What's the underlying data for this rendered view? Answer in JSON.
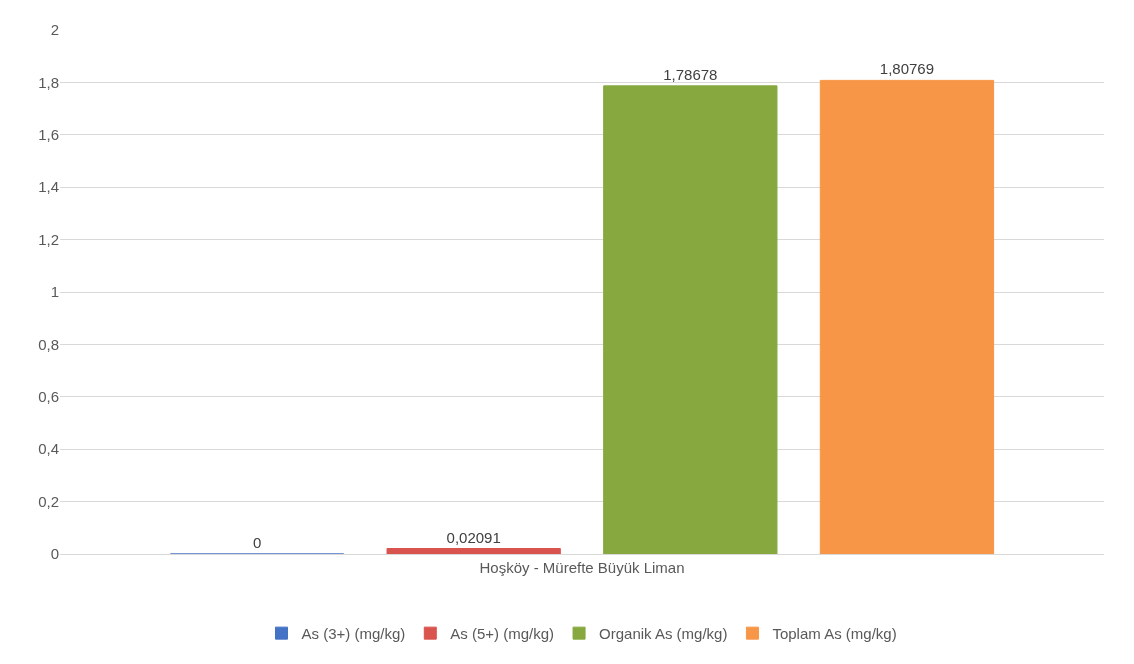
{
  "chart_data": {
    "type": "bar",
    "categories": [
      "Hoşköy - Mürefte Büyük Liman"
    ],
    "series": [
      {
        "name": "As (3+) (mg/kg)",
        "color": "#4472c4",
        "values": [
          0
        ],
        "value_labels": [
          "0"
        ]
      },
      {
        "name": "As (5+) (mg/kg)",
        "color": "#d9534f",
        "values": [
          0.02091
        ],
        "value_labels": [
          "0,02091"
        ]
      },
      {
        "name": "Organik As (mg/kg)",
        "color": "#86a83f",
        "values": [
          1.78678
        ],
        "value_labels": [
          "1,78678"
        ]
      },
      {
        "name": "Toplam As (mg/kg)",
        "color": "#f79646",
        "values": [
          1.80769
        ],
        "value_labels": [
          "1,80769"
        ]
      }
    ],
    "ylim": [
      0,
      2
    ],
    "yticks": [
      0,
      {
        "value": 0.2,
        "label": "0,2"
      },
      {
        "value": 0.4,
        "label": "0,4"
      },
      {
        "value": 0.6,
        "label": "0,6"
      },
      {
        "value": 0.8,
        "label": "0,8"
      },
      1,
      {
        "value": 1.2,
        "label": "1,2"
      },
      {
        "value": 1.4,
        "label": "1,4"
      },
      {
        "value": 1.6,
        "label": "1,6"
      },
      {
        "value": 1.8,
        "label": "1,8"
      },
      2
    ],
    "grid": "y",
    "legend": "bottom"
  }
}
